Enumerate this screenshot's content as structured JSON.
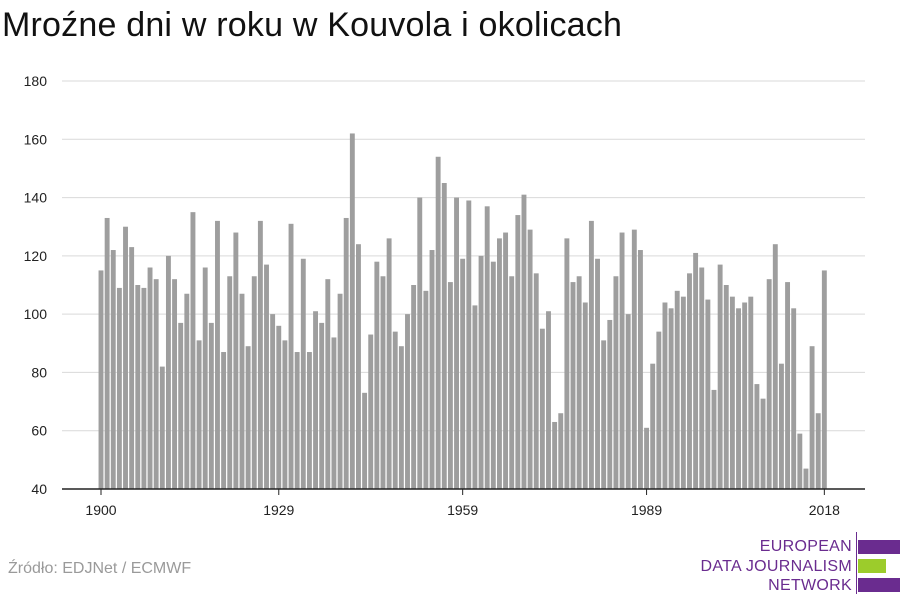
{
  "title": "Mroźne dni w roku w Kouvola i okolicach",
  "source": "Źródło: EDJNet / ECMWF",
  "logo": {
    "line1": "EUROPEAN",
    "line2": "DATA JOURNALISM",
    "line3": "NETWORK",
    "colors": {
      "purple": "#6a2c8f",
      "green": "#9ccc2b",
      "text": "#6a2c8f"
    }
  },
  "colors": {
    "bar": "#9e9e9e",
    "grid": "#d9d9d9",
    "axis": "#222222"
  },
  "chart_data": {
    "type": "bar",
    "title": "Mroźne dni w roku w Kouvola i okolicach",
    "xlabel": "",
    "ylabel": "",
    "ylim": [
      40,
      180
    ],
    "yticks": [
      40,
      60,
      80,
      100,
      120,
      140,
      160,
      180
    ],
    "xticks": [
      "1900",
      "1929",
      "1959",
      "1989",
      "2018"
    ],
    "grid": true,
    "legend": "none",
    "x_start": 1900,
    "values": [
      115,
      133,
      122,
      109,
      130,
      123,
      110,
      109,
      116,
      112,
      82,
      120,
      112,
      97,
      107,
      135,
      91,
      116,
      97,
      132,
      87,
      113,
      128,
      107,
      89,
      113,
      132,
      117,
      100,
      96,
      91,
      131,
      87,
      119,
      87,
      101,
      97,
      112,
      92,
      107,
      133,
      162,
      124,
      73,
      93,
      118,
      113,
      126,
      94,
      89,
      100,
      110,
      140,
      108,
      122,
      154,
      145,
      111,
      140,
      119,
      139,
      103,
      120,
      137,
      118,
      126,
      128,
      113,
      134,
      141,
      129,
      114,
      95,
      101,
      63,
      66,
      126,
      111,
      113,
      104,
      132,
      119,
      91,
      98,
      113,
      128,
      100,
      129,
      122,
      61,
      83,
      94,
      104,
      102,
      108,
      106,
      114,
      121,
      116,
      105,
      74,
      117,
      110,
      106,
      102,
      104,
      106,
      76,
      71,
      112,
      124,
      83,
      111,
      102,
      59,
      47,
      89,
      66,
      115
    ]
  }
}
